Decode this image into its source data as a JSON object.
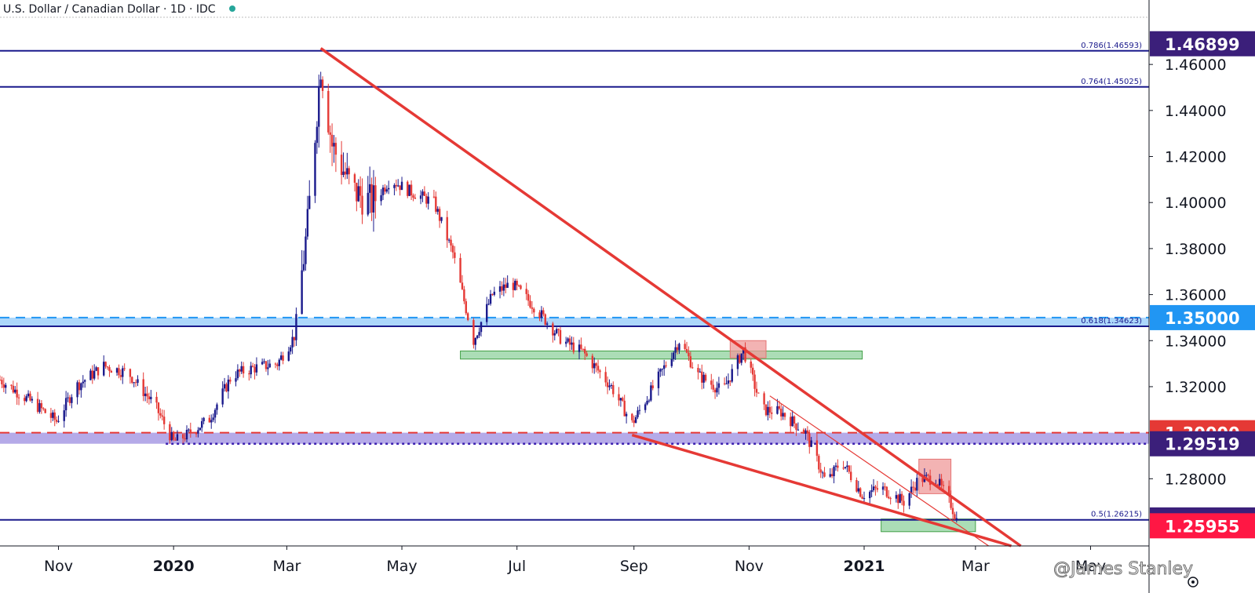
{
  "header": {
    "symbol_title": "U.S. Dollar / Canadian Dollar · 1D · IDC",
    "status_color": "#26a69a"
  },
  "watermark": "@James Stanley",
  "settings_icon": "gear-icon",
  "chart_data": {
    "type": "candlestick",
    "title": "U.S. Dollar / Canadian Dollar · 1D · IDC",
    "ylim": [
      1.2508,
      1.4805
    ],
    "y_ticks": [
      "1.46000",
      "1.44000",
      "1.42000",
      "1.40000",
      "1.38000",
      "1.36000",
      "1.34000",
      "1.32000",
      "1.28000"
    ],
    "x_ticks": [
      {
        "label": "Nov",
        "date": "2019-11-01",
        "bold": false
      },
      {
        "label": "2020",
        "date": "2020-01-01",
        "bold": true
      },
      {
        "label": "Mar",
        "date": "2020-03-01",
        "bold": false
      },
      {
        "label": "May",
        "date": "2020-05-01",
        "bold": false
      },
      {
        "label": "Jul",
        "date": "2020-07-01",
        "bold": false
      },
      {
        "label": "Sep",
        "date": "2020-09-01",
        "bold": false
      },
      {
        "label": "Nov",
        "date": "2020-11-01",
        "bold": false
      },
      {
        "label": "2021",
        "date": "2021-01-01",
        "bold": true
      },
      {
        "label": "Mar",
        "date": "2021-03-01",
        "bold": false
      },
      {
        "label": "May",
        "date": "2021-05-01",
        "bold": false
      }
    ],
    "price_tags": [
      {
        "label": "1.46899",
        "value": 1.46899,
        "color": "#3b1f7a"
      },
      {
        "label": "1.35000",
        "value": 1.35,
        "color": "#2196f3"
      },
      {
        "label": "1.30000",
        "value": 1.3,
        "color": "#e53935"
      },
      {
        "label": "1.29519",
        "value": 1.29519,
        "color": "#3b1f7a"
      },
      {
        "label": "1.26210",
        "value": 1.2621,
        "color": "#3b1f7a"
      },
      {
        "label": "1.25955",
        "value": 1.25955,
        "color": "#ff1744"
      }
    ],
    "fib_levels": [
      {
        "label": "0.786(1.46593)",
        "value": 1.46593
      },
      {
        "label": "0.764(1.45025)",
        "value": 1.45025
      },
      {
        "label": "0.618(1.34623)",
        "value": 1.34623
      },
      {
        "label": "0.5(1.26215)",
        "value": 1.26215
      }
    ],
    "horizontal_lines": [
      1.46593,
      1.45025,
      1.34623,
      1.26215
    ],
    "zones": [
      {
        "name": "blue-zone",
        "from": 1.3462,
        "to": 1.35,
        "color": "#90caf9"
      },
      {
        "name": "purple-zone",
        "from": 1.2952,
        "to": 1.3,
        "color": "#9c8ee0"
      },
      {
        "name": "green-zone-mid",
        "start": "2020-06-01",
        "end": "2020-12-31",
        "from": 1.332,
        "to": 1.3355,
        "color": "#8fd19e"
      },
      {
        "name": "green-zone-low",
        "start": "2021-01-10",
        "end": "2021-03-01",
        "from": 1.257,
        "to": 1.2625,
        "color": "#8fd19e"
      },
      {
        "name": "red-zone-1",
        "start": "2020-10-22",
        "end": "2020-11-10",
        "from": 1.3325,
        "to": 1.34,
        "color": "#ef9a9a"
      },
      {
        "name": "red-zone-2",
        "start": "2021-01-30",
        "end": "2021-02-16",
        "from": 1.2735,
        "to": 1.2885,
        "color": "#ef9a9a"
      }
    ],
    "trendlines": [
      {
        "name": "wedge-upper",
        "from": [
          "2020-03-19",
          1.467
        ],
        "to": [
          "2021-03-25",
          1.2508
        ],
        "color": "#e53935"
      },
      {
        "name": "wedge-lower",
        "from": [
          "2020-08-31",
          1.299
        ],
        "to": [
          "2021-03-20",
          1.2508
        ],
        "color": "#e53935"
      },
      {
        "name": "inner-channel",
        "from": [
          "2020-11-12",
          1.316
        ],
        "to": [
          "2021-03-08",
          1.2508
        ],
        "color": "#e53935"
      }
    ],
    "candles_monthly_path": [
      [
        "2019-10-01",
        1.323
      ],
      [
        "2019-10-20",
        1.312
      ],
      [
        "2019-10-31",
        1.305
      ],
      [
        "2019-11-10",
        1.32
      ],
      [
        "2019-11-25",
        1.329
      ],
      [
        "2019-12-08",
        1.326
      ],
      [
        "2019-12-22",
        1.312
      ],
      [
        "2020-01-01",
        1.296
      ],
      [
        "2020-01-08",
        1.299
      ],
      [
        "2020-01-20",
        1.306
      ],
      [
        "2020-02-01",
        1.325
      ],
      [
        "2020-02-12",
        1.328
      ],
      [
        "2020-02-25",
        1.33
      ],
      [
        "2020-03-05",
        1.342
      ],
      [
        "2020-03-12",
        1.39
      ],
      [
        "2020-03-19",
        1.46
      ],
      [
        "2020-03-25",
        1.425
      ],
      [
        "2020-04-05",
        1.405
      ],
      [
        "2020-04-15",
        1.4
      ],
      [
        "2020-04-25",
        1.41
      ],
      [
        "2020-05-05",
        1.405
      ],
      [
        "2020-05-18",
        1.4
      ],
      [
        "2020-05-28",
        1.378
      ],
      [
        "2020-06-08",
        1.34
      ],
      [
        "2020-06-18",
        1.36
      ],
      [
        "2020-06-28",
        1.365
      ],
      [
        "2020-07-10",
        1.355
      ],
      [
        "2020-07-25",
        1.34
      ],
      [
        "2020-08-05",
        1.335
      ],
      [
        "2020-08-20",
        1.32
      ],
      [
        "2020-08-31",
        1.304
      ],
      [
        "2020-09-10",
        1.318
      ],
      [
        "2020-09-25",
        1.34
      ],
      [
        "2020-10-05",
        1.325
      ],
      [
        "2020-10-18",
        1.318
      ],
      [
        "2020-10-29",
        1.336
      ],
      [
        "2020-11-08",
        1.31
      ],
      [
        "2020-11-18",
        1.309
      ],
      [
        "2020-12-01",
        1.3
      ],
      [
        "2020-12-12",
        1.278
      ],
      [
        "2020-12-20",
        1.288
      ],
      [
        "2020-12-31",
        1.273
      ],
      [
        "2021-01-10",
        1.276
      ],
      [
        "2021-01-22",
        1.27
      ],
      [
        "2021-01-30",
        1.28
      ],
      [
        "2021-02-08",
        1.28
      ],
      [
        "2021-02-16",
        1.269
      ],
      [
        "2021-02-20",
        1.26
      ]
    ]
  }
}
